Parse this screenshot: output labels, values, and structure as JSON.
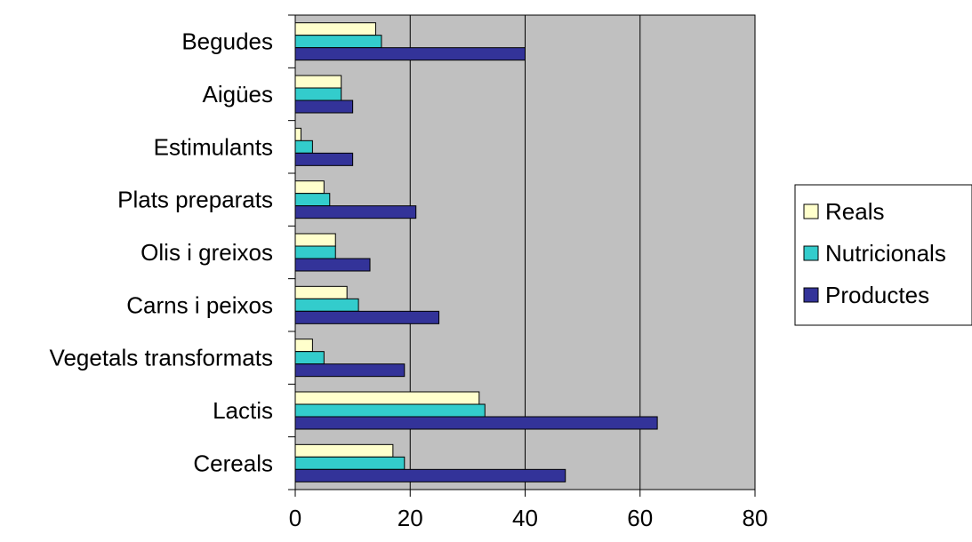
{
  "chart_data": {
    "type": "bar",
    "orientation": "horizontal",
    "title": "",
    "xlabel": "",
    "ylabel": "",
    "categories": [
      "Cereals",
      "Lactis",
      "Vegetals transformats",
      "Carns i peixos",
      "Olis i greixos",
      "Plats preparats",
      "Estimulants",
      "Aigües",
      "Begudes"
    ],
    "series": [
      {
        "name": "Productes",
        "color": "#333399",
        "values": [
          47,
          63,
          19,
          25,
          13,
          21,
          10,
          10,
          40
        ]
      },
      {
        "name": "Nutricionals",
        "color": "#33CCCC",
        "values": [
          19,
          33,
          5,
          11,
          7,
          6,
          3,
          8,
          15
        ]
      },
      {
        "name": "Reals",
        "color": "#FFFFCC",
        "values": [
          17,
          32,
          3,
          9,
          7,
          5,
          1,
          8,
          14
        ]
      }
    ],
    "xlim": [
      0,
      80
    ],
    "xticks": [
      0,
      20,
      40,
      60,
      80
    ],
    "grid": "vertical",
    "plot_background": "#C0C0C0",
    "legend_position": "right",
    "legend_order": [
      "Reals",
      "Nutricionals",
      "Productes"
    ]
  }
}
